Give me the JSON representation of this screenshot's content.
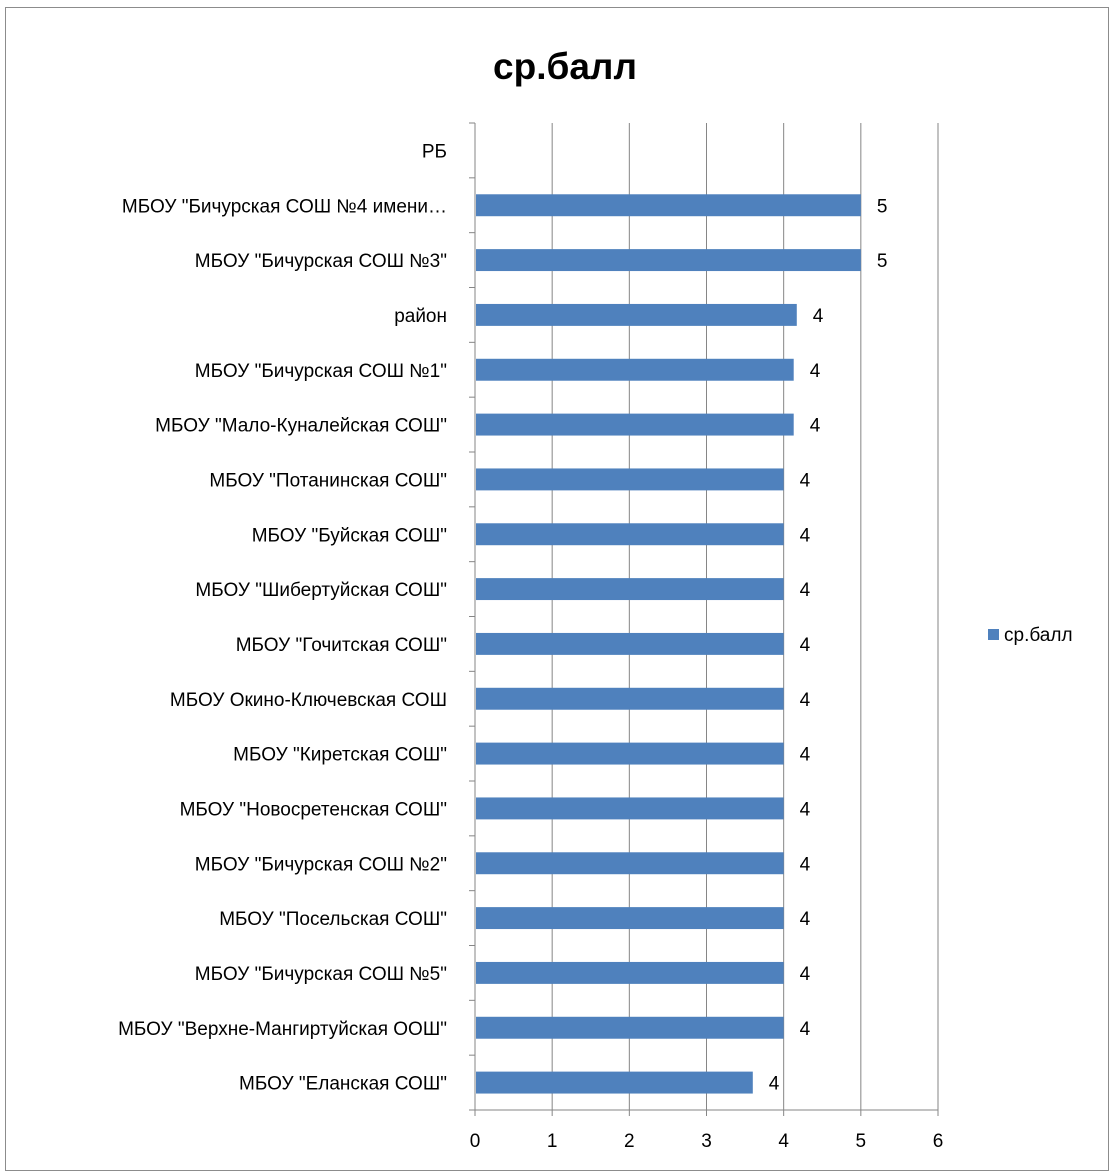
{
  "chart_data": {
    "type": "bar",
    "orientation": "horizontal",
    "title": "ср.балл",
    "xlabel": "",
    "ylabel": "",
    "xlim": [
      0,
      6
    ],
    "x_ticks": [
      "0",
      "1",
      "2",
      "3",
      "4",
      "5",
      "6"
    ],
    "grid": "vertical",
    "legend_position": "right",
    "series": [
      {
        "name": "ср.балл",
        "color": "#4F81BD",
        "values": [
          null,
          5,
          5,
          4.17,
          4.13,
          4.13,
          4.0,
          4.0,
          4.0,
          4.0,
          4.0,
          4.0,
          4.0,
          4.0,
          4.0,
          4.0,
          4.0,
          3.6
        ],
        "data_labels": [
          "",
          "5",
          "5",
          "4",
          "4",
          "4",
          "4",
          "4",
          "4",
          "4",
          "4",
          "4",
          "4",
          "4",
          "4",
          "4",
          "4",
          "4"
        ]
      }
    ],
    "categories": [
      "РБ",
      "МБОУ \"Бичурская СОШ №4 имени…",
      "МБОУ \"Бичурская СОШ №3\"",
      "район",
      "МБОУ \"Бичурская СОШ №1\"",
      "МБОУ \"Мало-Куналейская СОШ\"",
      "МБОУ \"Потанинская СОШ\"",
      "МБОУ \"Буйская СОШ\"",
      "МБОУ \"Шибертуйская СОШ\"",
      "МБОУ \"Гочитская СОШ\"",
      "МБОУ Окино-Ключевская СОШ",
      "МБОУ \"Киретская СОШ\"",
      "МБОУ \"Новосретенская СОШ\"",
      "МБОУ \"Бичурская СОШ №2\"",
      "МБОУ \"Посельская СОШ\"",
      "МБОУ \"Бичурская СОШ №5\"",
      "МБОУ \"Верхне-Мангиртуйская ООШ\"",
      "МБОУ \"Еланская СОШ\""
    ]
  }
}
